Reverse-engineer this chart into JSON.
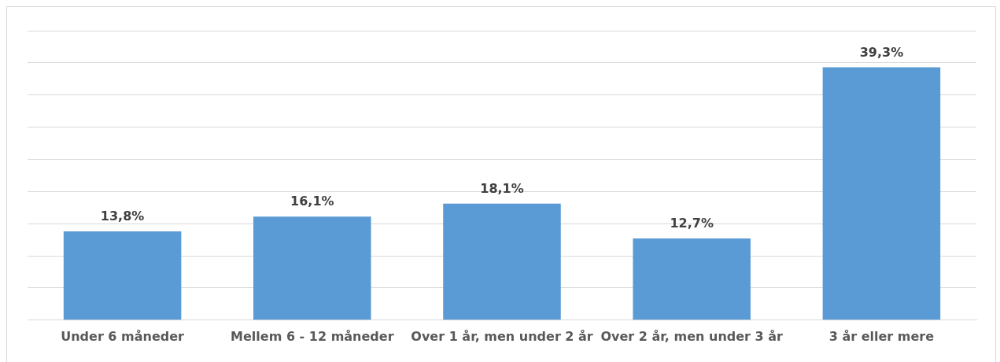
{
  "chart_data": {
    "type": "bar",
    "categories": [
      "Under 6 måneder",
      "Mellem 6 - 12 måneder",
      "Over 1 år, men under 2 år",
      "Over 2 år, men under 3 år",
      "3 år eller mere"
    ],
    "values": [
      13.8,
      16.1,
      18.1,
      12.7,
      39.3
    ],
    "value_labels": [
      "13,8%",
      "16,1%",
      "18,1%",
      "12,7%",
      "39,3%"
    ],
    "color": "#5b9bd5",
    "ylim": [
      0,
      45
    ],
    "yticks": [
      {
        "value": 0,
        "label": null
      },
      {
        "value": 5,
        "label": null
      },
      {
        "value": 10,
        "label": null
      },
      {
        "value": 15,
        "label": null
      },
      {
        "value": 20,
        "label": null
      },
      {
        "value": 25,
        "label": null
      },
      {
        "value": 30,
        "label": null
      },
      {
        "value": 35,
        "label": null
      },
      {
        "value": 40,
        "label": null
      },
      {
        "value": 45,
        "label": null
      }
    ],
    "grid": "y",
    "tick_labels": "x",
    "legend": false
  }
}
